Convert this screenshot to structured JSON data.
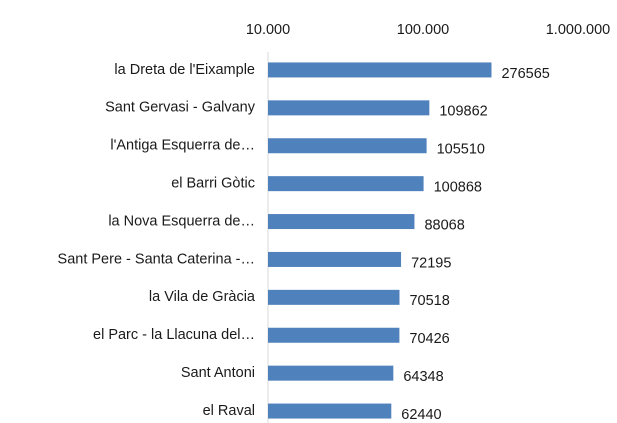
{
  "chart_data": {
    "type": "bar",
    "orientation": "horizontal",
    "log_scale": true,
    "grid": false,
    "color": "#4f81bd",
    "categories": [
      "la Dreta de l'Eixample",
      "Sant Gervasi - Galvany",
      "l'Antiga Esquerra de…",
      "el Barri Gòtic",
      "la Nova Esquerra de…",
      "Sant Pere - Santa Caterina -…",
      "la Vila de Gràcia",
      "el Parc - la Llacuna del…",
      "Sant Antoni",
      "el Raval"
    ],
    "values": [
      276565,
      109862,
      105510,
      100868,
      88068,
      72195,
      70518,
      70426,
      64348,
      62440
    ],
    "xlim": [
      10000,
      1000000
    ],
    "xticks": [
      {
        "value": 10000,
        "label": "10.000"
      },
      {
        "value": 100000,
        "label": "100.000"
      },
      {
        "value": 1000000,
        "label": "1.000.000"
      }
    ]
  }
}
